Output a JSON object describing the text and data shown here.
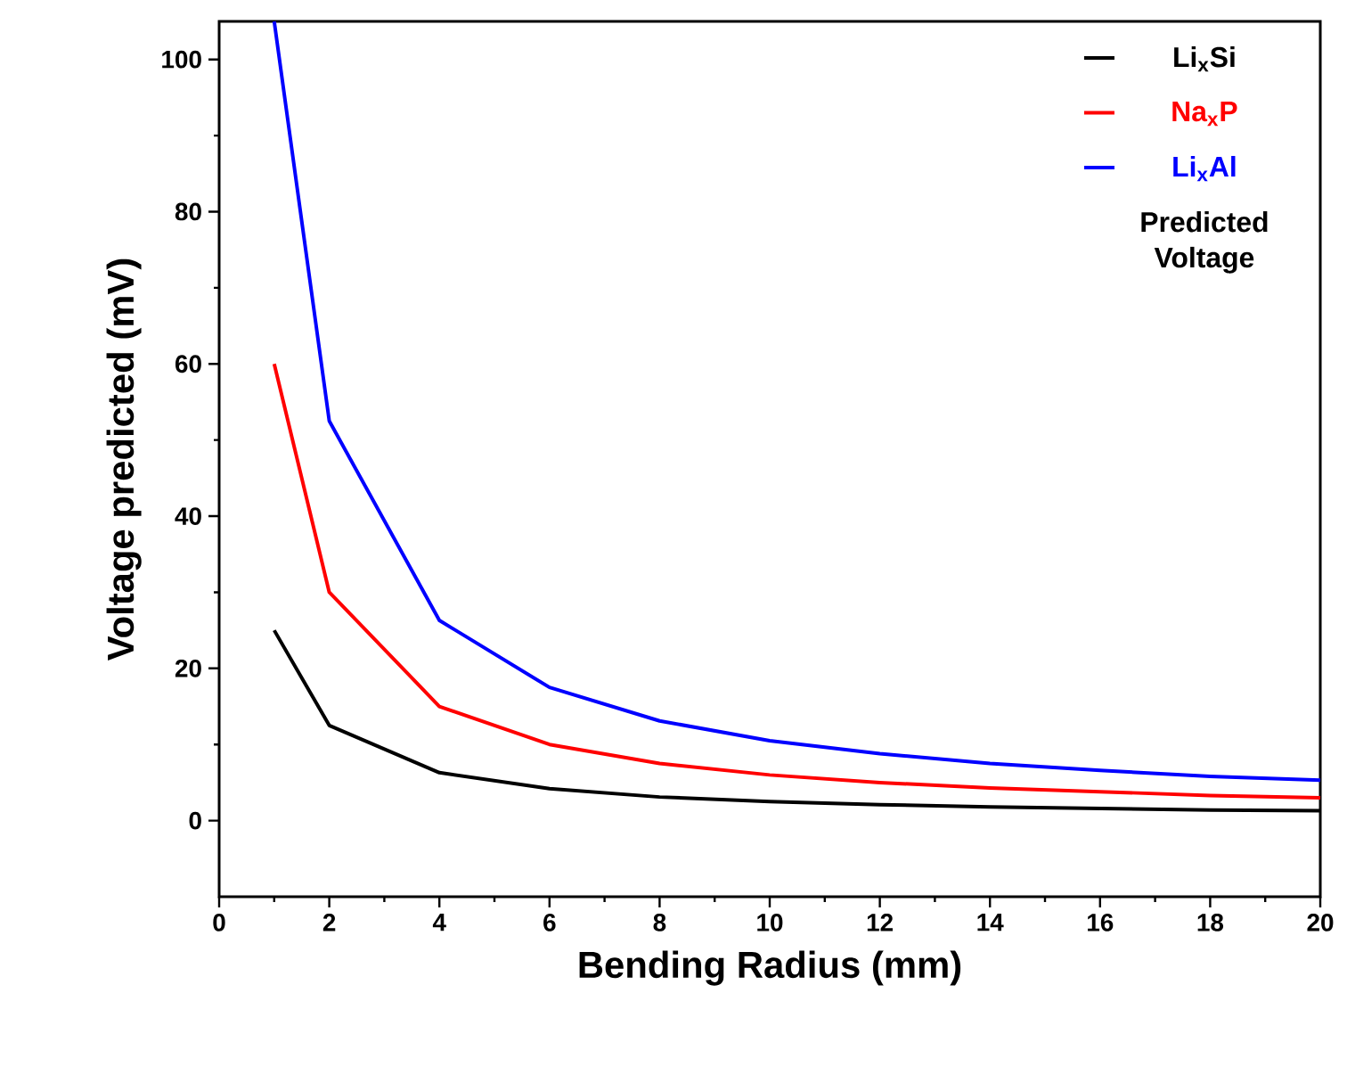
{
  "chart_data": {
    "type": "line",
    "xlabel": "Bending Radius (mm)",
    "ylabel": "Voltage predicted (mV)",
    "x": [
      1,
      2,
      4,
      6,
      8,
      10,
      12,
      14,
      16,
      18,
      20
    ],
    "series": [
      {
        "name": "Li$_{x}$Si",
        "color": "#000000",
        "values": [
          25,
          12.5,
          6.3,
          4.2,
          3.1,
          2.5,
          2.1,
          1.8,
          1.6,
          1.4,
          1.3
        ]
      },
      {
        "name": "Na$_{x}$P",
        "color": "#ff0000",
        "values": [
          60,
          30,
          15,
          10,
          7.5,
          6,
          5,
          4.3,
          3.8,
          3.3,
          3
        ]
      },
      {
        "name": "Li$_{x}$Al",
        "color": "#0000ff",
        "values": [
          105,
          52.5,
          26.3,
          17.5,
          13.1,
          10.5,
          8.8,
          7.5,
          6.6,
          5.8,
          5.3
        ]
      }
    ],
    "legend_title": "Predicted Voltage",
    "legend": "top right",
    "xlim": [
      0,
      20
    ],
    "xticks": [
      0,
      2,
      4,
      6,
      8,
      10,
      12,
      14,
      16,
      18,
      20
    ],
    "ylim": [
      -10,
      105
    ],
    "yticks": [
      0,
      20,
      40,
      60,
      80,
      100
    ],
    "grid": false,
    "marker": "none",
    "line_style": "solid"
  }
}
